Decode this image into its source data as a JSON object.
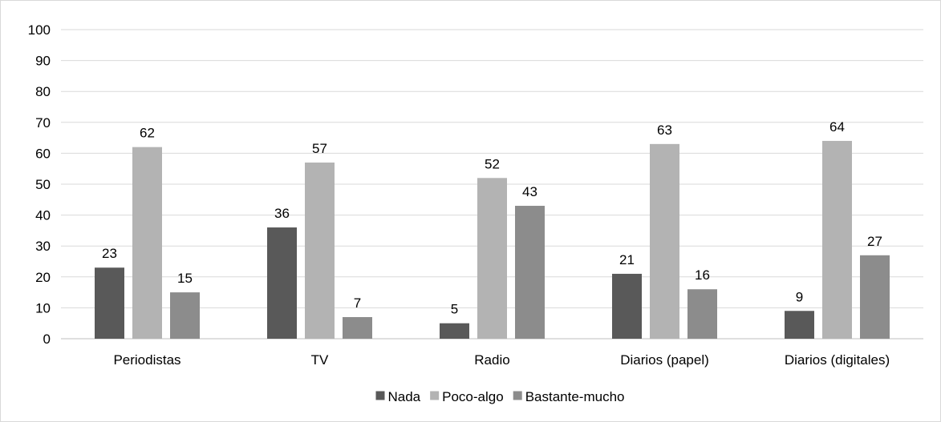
{
  "chart_data": {
    "type": "bar",
    "title": "",
    "xlabel": "",
    "ylabel": "",
    "categories": [
      "Periodistas",
      "TV",
      "Radio",
      "Diarios (papel)",
      "Diarios (digitales)"
    ],
    "series": [
      {
        "name": "Nada",
        "values": [
          23,
          36,
          5,
          21,
          9
        ],
        "color": "#595959"
      },
      {
        "name": "Poco-algo",
        "values": [
          62,
          57,
          52,
          63,
          64
        ],
        "color": "#b3b3b3"
      },
      {
        "name": "Bastante-mucho",
        "values": [
          15,
          7,
          43,
          16,
          27
        ],
        "color": "#8c8c8c"
      }
    ],
    "ylim": [
      0,
      100
    ],
    "yticks": [
      0,
      10,
      20,
      30,
      40,
      50,
      60,
      70,
      80,
      90,
      100
    ],
    "grid": true,
    "data_labels": true,
    "legend_position": "bottom"
  }
}
